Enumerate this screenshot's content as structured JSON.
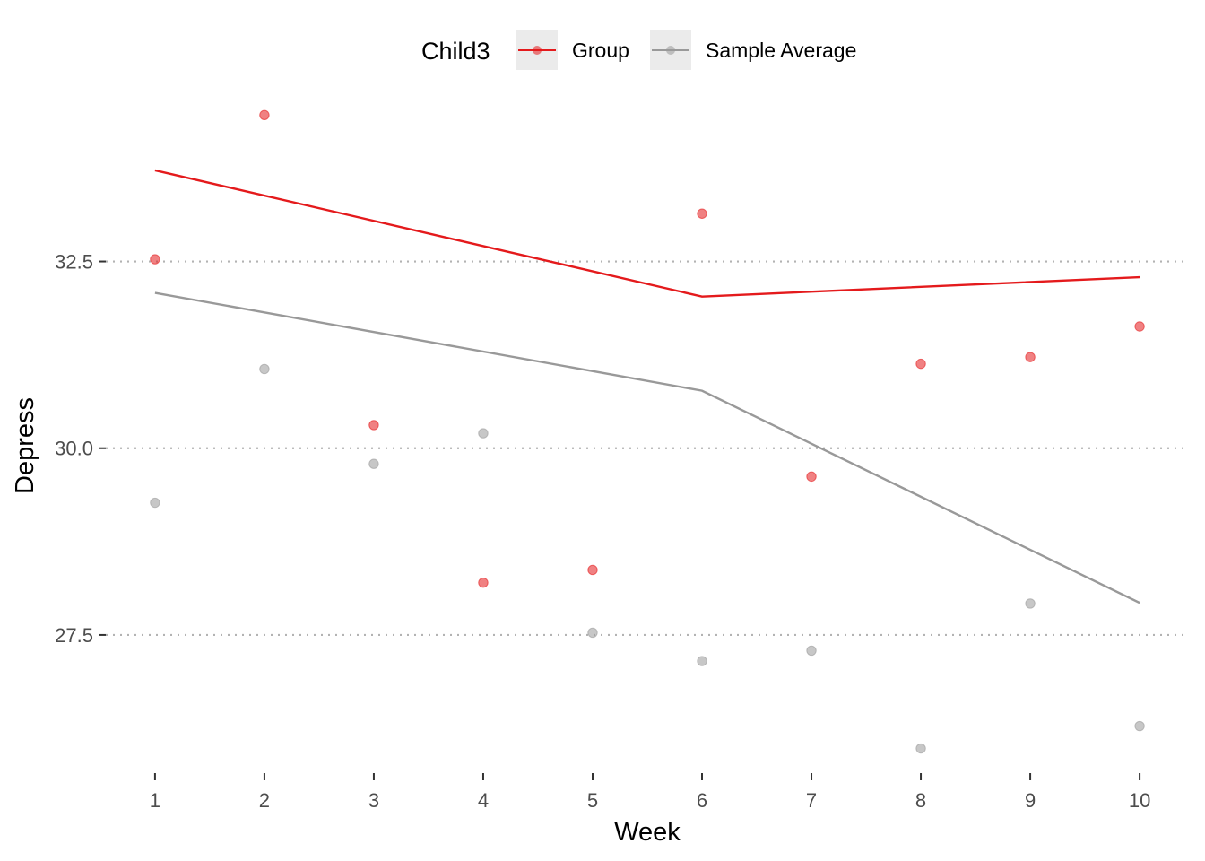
{
  "chart_data": {
    "type": "line",
    "xlabel": "Week",
    "ylabel": "Depress",
    "x": [
      1,
      2,
      3,
      4,
      5,
      6,
      7,
      8,
      9,
      10
    ],
    "x_tick_labels": [
      "1",
      "2",
      "3",
      "4",
      "5",
      "6",
      "7",
      "8",
      "9",
      "10"
    ],
    "y_ticks": [
      27.5,
      30.0,
      32.5
    ],
    "y_tick_labels": [
      "27.5",
      "30.0",
      "32.5"
    ],
    "ylim": [
      25.65,
      34.8
    ],
    "xlim": [
      0.55,
      10.45
    ],
    "grid": "horizontal major dotted",
    "legend": {
      "title": "Child3",
      "position": "top",
      "entries": [
        "Group",
        "Sample Average"
      ]
    },
    "series": [
      {
        "name": "Group",
        "color": "#e41a1c",
        "points_y": [
          32.53,
          34.46,
          30.31,
          28.2,
          28.37,
          33.14,
          29.62,
          31.13,
          31.22,
          31.63
        ],
        "line_x": [
          1,
          6,
          10
        ],
        "line_y": [
          33.72,
          32.03,
          32.29
        ]
      },
      {
        "name": "Sample Average",
        "color": "#999999",
        "points_y": [
          29.27,
          31.06,
          29.79,
          30.2,
          27.53,
          27.15,
          27.29,
          25.98,
          27.92,
          26.28
        ],
        "line_x": [
          1,
          6,
          10
        ],
        "line_y": [
          32.08,
          30.77,
          27.93
        ]
      }
    ]
  }
}
